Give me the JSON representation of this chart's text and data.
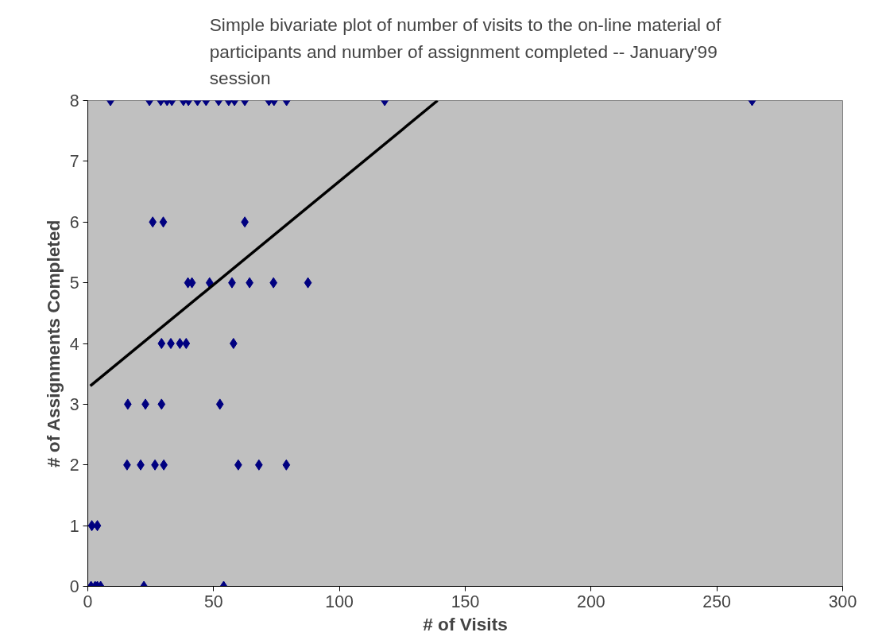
{
  "chart_data": {
    "type": "scatter",
    "title": "Simple bivariate plot of number of visits to the on-line material of\nparticipants and number of assignment completed -- January'99\nsession",
    "xlabel": "# of Visits",
    "ylabel": "# of Assignments Completed",
    "xlim": [
      0,
      300
    ],
    "xticks": [
      0,
      50,
      100,
      150,
      200,
      250,
      300
    ],
    "ylim": [
      0,
      8
    ],
    "yticks": [
      0,
      1,
      2,
      3,
      4,
      5,
      6,
      7,
      8
    ],
    "grid": false,
    "marker": "diamond",
    "series": [
      {
        "color": "#000080",
        "x": [
          9,
          24.5,
          29,
          31.5,
          33.4,
          38,
          40,
          43.6,
          47,
          52,
          56,
          58.3,
          62.4,
          72,
          74,
          79,
          118,
          264,
          25.8,
          30,
          62.4,
          39.8,
          41.4,
          48.4,
          57.3,
          64.3,
          73.8,
          87.5,
          29.3,
          33,
          36.6,
          39.1,
          57.9,
          15.9,
          22.9,
          29.3,
          52.5,
          15.6,
          21,
          26.7,
          30.2,
          59.8,
          68,
          78.9,
          1.6,
          3.8,
          1.3,
          2.9,
          3.8,
          5.1,
          22.3,
          54
        ],
        "values": [
          8,
          8,
          8,
          8,
          8,
          8,
          8,
          8,
          8,
          8,
          8,
          8,
          8,
          8,
          8,
          8,
          8,
          8,
          6,
          6,
          6,
          5,
          5,
          5,
          5,
          5,
          5,
          5,
          4,
          4,
          4,
          4,
          4,
          3,
          3,
          3,
          3,
          2,
          2,
          2,
          2,
          2,
          2,
          2,
          1,
          1,
          0,
          0,
          0,
          0,
          0,
          0
        ]
      },
      {
        "type": "line",
        "color": "#000000",
        "line_style": "solid",
        "marker": "none",
        "x": [
          1,
          139
        ],
        "values": [
          3.3,
          8
        ]
      }
    ]
  }
}
